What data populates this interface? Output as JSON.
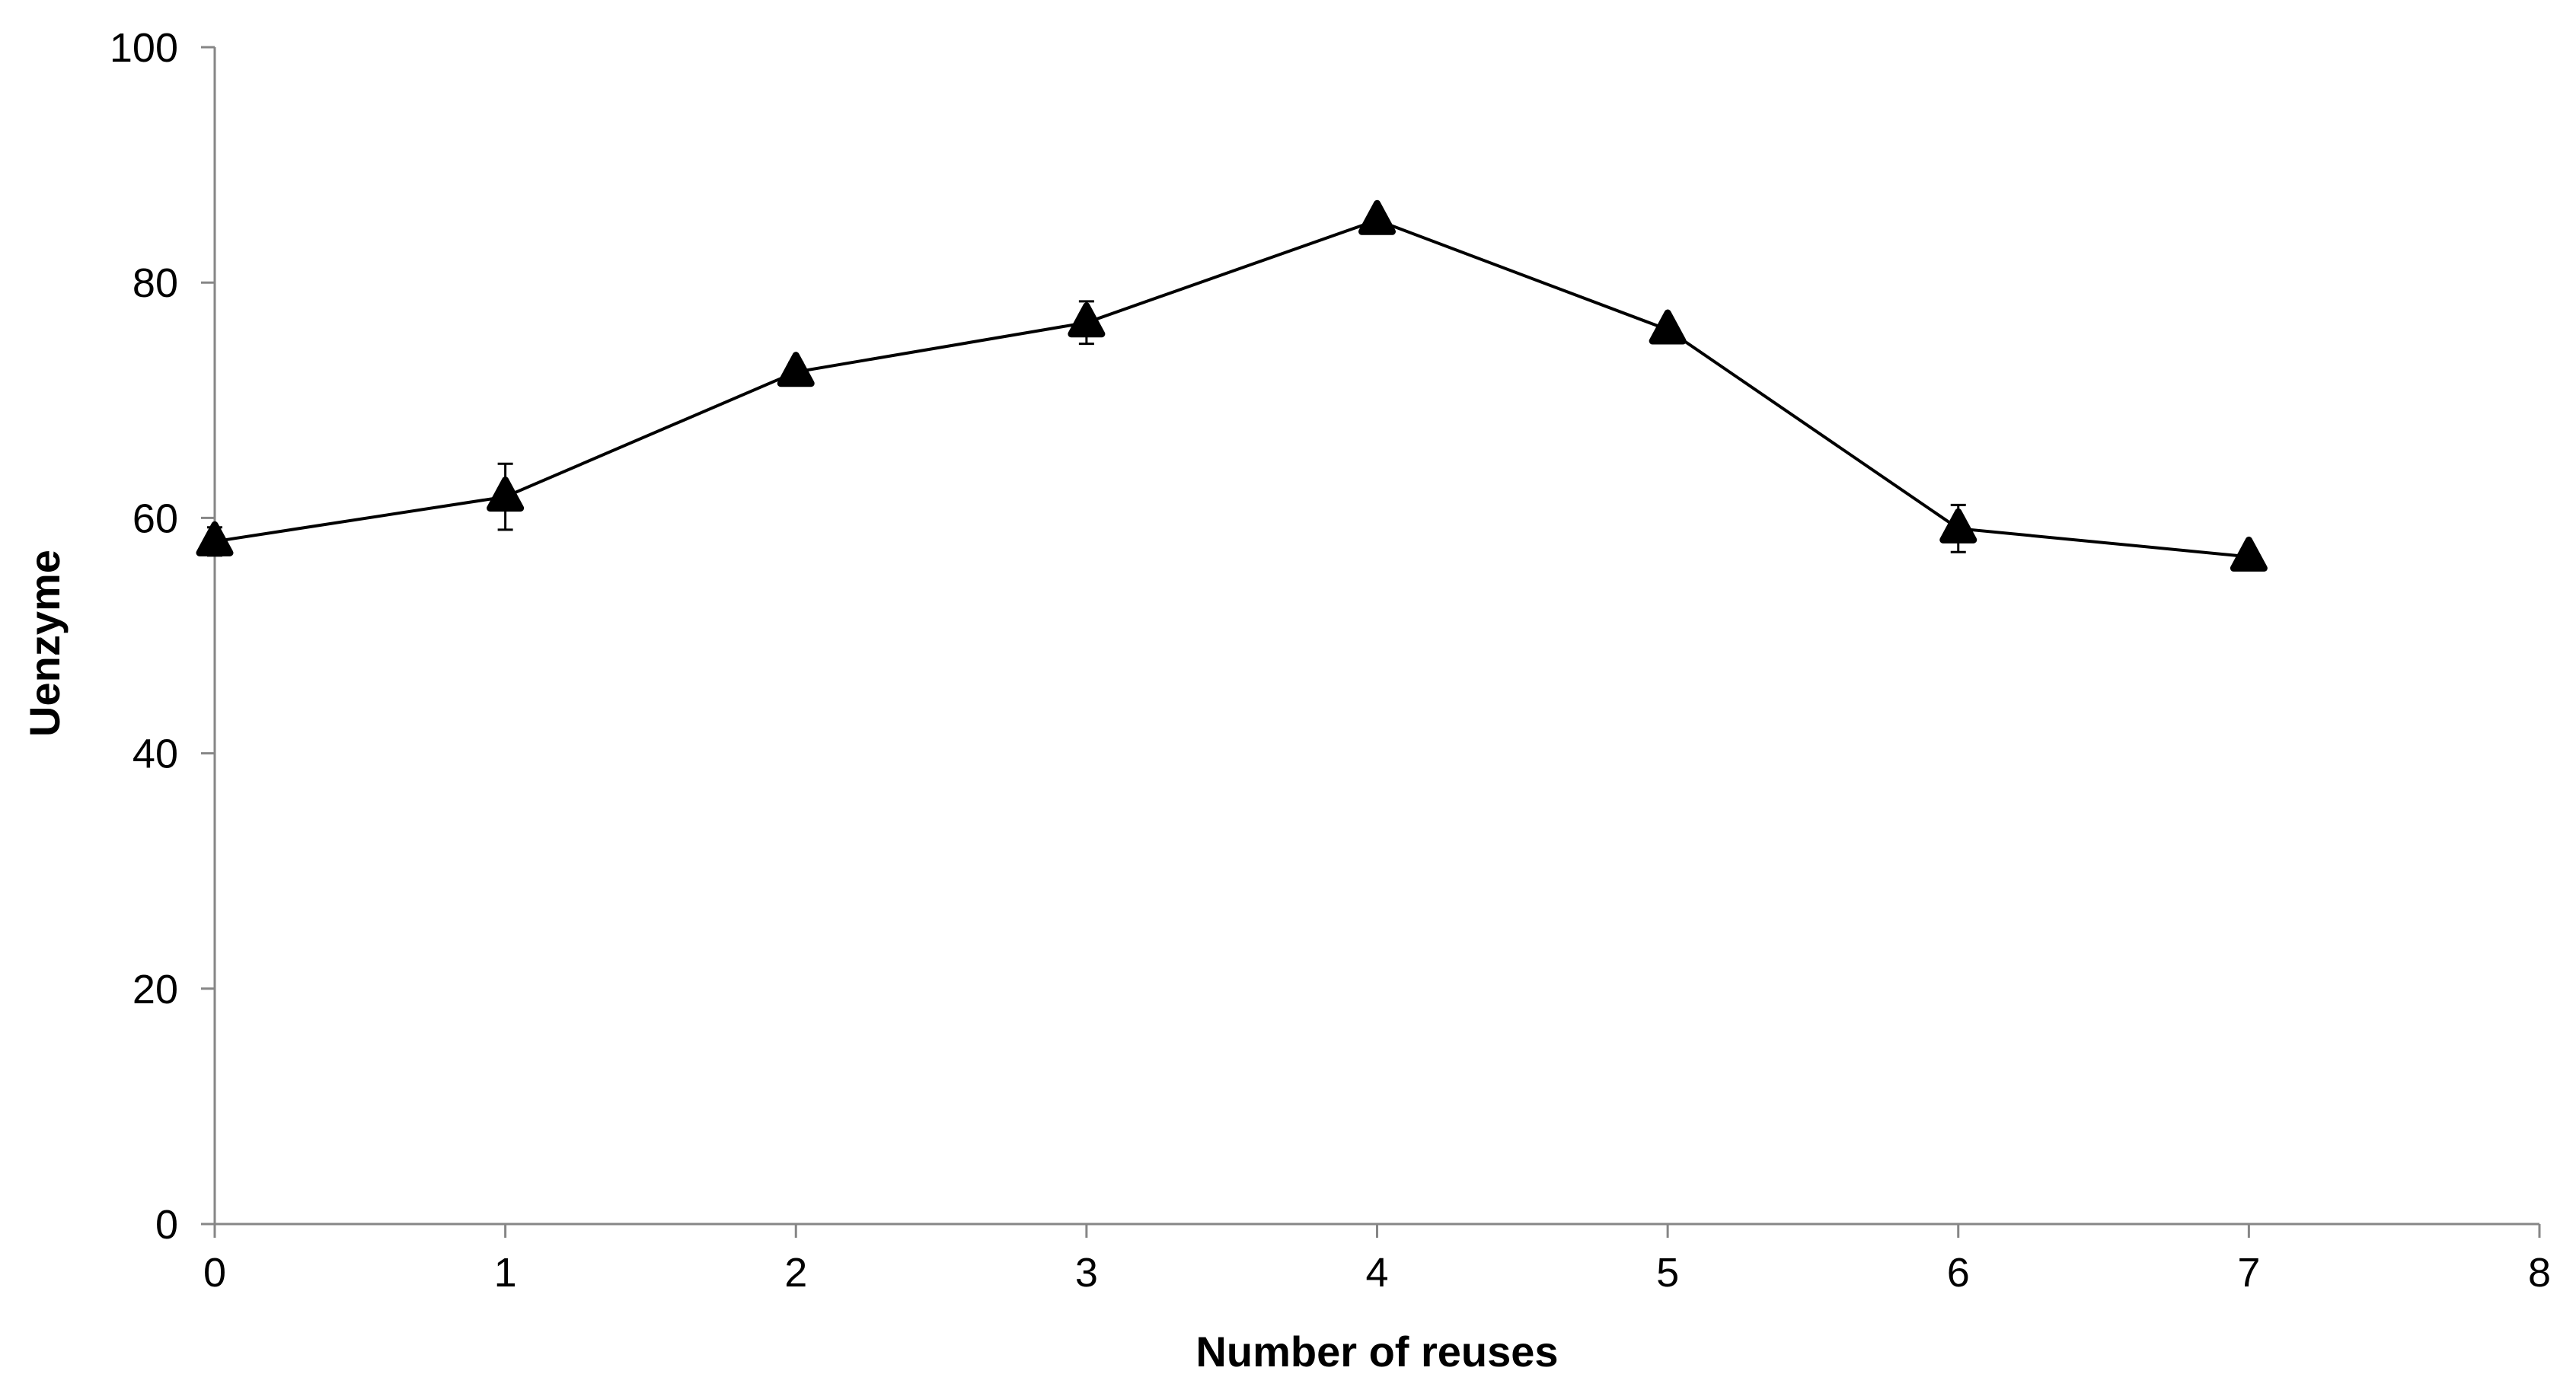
{
  "chart_data": {
    "type": "line",
    "title": "",
    "xlabel": "Number of reuses",
    "ylabel": "Uenzyme",
    "xlim": [
      0,
      8
    ],
    "ylim": [
      0,
      100
    ],
    "x_ticks": [
      "0",
      "1",
      "2",
      "3",
      "4",
      "5",
      "6",
      "7",
      "8"
    ],
    "y_ticks": [
      "0",
      "20",
      "40",
      "60",
      "80",
      "100"
    ],
    "grid": false,
    "legend": "none",
    "series": [
      {
        "marker": "triangle",
        "color": "#000000",
        "x": [
          0,
          1,
          2,
          3,
          4,
          5,
          6,
          7
        ],
        "y": [
          58.0,
          61.8,
          72.4,
          76.6,
          85.3,
          76.0,
          59.1,
          56.7
        ],
        "error": [
          1.2,
          2.8,
          0.8,
          1.8,
          0.6,
          0.7,
          2.0,
          0.6
        ]
      }
    ]
  }
}
